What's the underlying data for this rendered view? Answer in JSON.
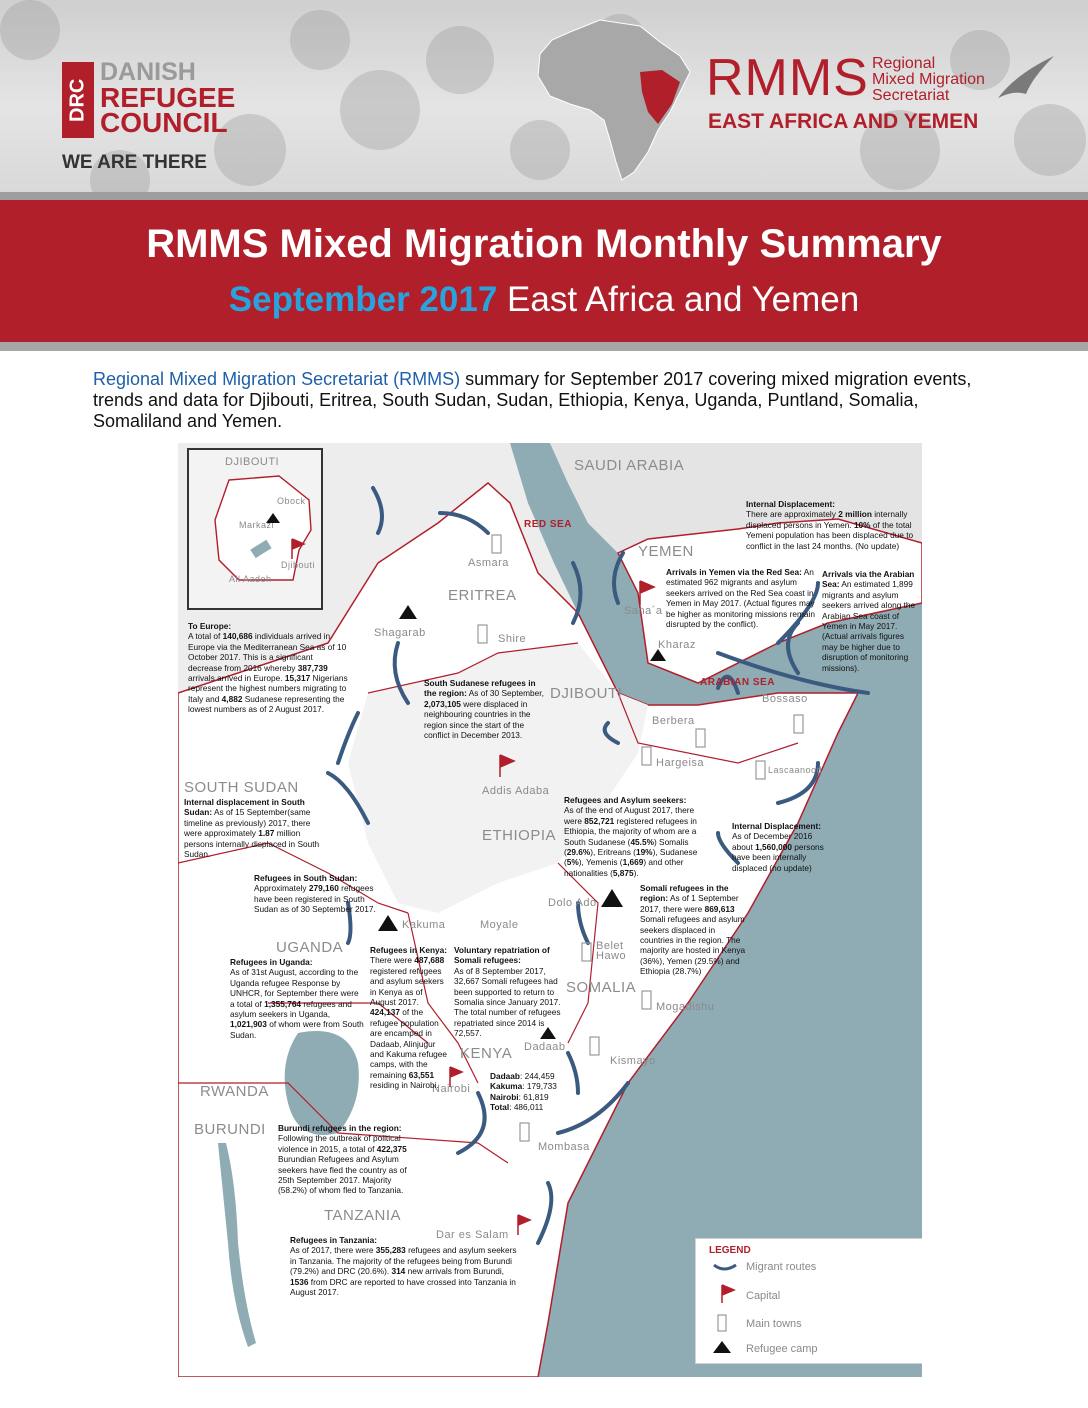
{
  "header": {
    "drc": {
      "vertical": "DRC",
      "line1": "DANISH",
      "line2": "REFUGEE",
      "line3": "COUNCIL",
      "tagline": "WE ARE THERE"
    },
    "rmms": {
      "acronym": "RMMS",
      "line1": "Regional",
      "line2": "Mixed Migration",
      "line3": "Secretariat",
      "region": "EAST AFRICA AND YEMEN"
    }
  },
  "banner": {
    "title": "RMMS Mixed Migration Monthly Summary",
    "subtitle_highlight": "September 2017",
    "subtitle_rest": " East Africa and Yemen"
  },
  "intro": {
    "lead": "Regional Mixed Migration Secretariat (RMMS)",
    "rest": " summary for September 2017 covering mixed migration events, trends and data for Djibouti, Eritrea, South Sudan, Sudan, Ethiopia, Kenya, Uganda, Puntland, Somalia, Somaliland and Yemen."
  },
  "colors": {
    "brand_red": "#b11f2a",
    "accent_blue": "#29a3de",
    "sea": "#8fabb3",
    "land": "#ffffff",
    "route_arrow": "#3a5a80"
  },
  "map": {
    "countries": [
      "SAUDI ARABIA",
      "YEMEN",
      "ERITREA",
      "DJIBOUTI",
      "ETHIOPIA",
      "SOUTH SUDAN",
      "UGANDA",
      "KENYA",
      "SOMALIA",
      "RWANDA",
      "BURUNDI",
      "TANZANIA"
    ],
    "seas": [
      "RED SEA",
      "ARABIAN SEA"
    ],
    "towns": [
      "Asmara",
      "Shire",
      "Shagarab",
      "Sana´a",
      "Kharaz",
      "Berbera",
      "Bossaso",
      "Hargeisa",
      "Lascaanood",
      "Addis Adaba",
      "Dolo Ado",
      "Kakuma",
      "Moyale",
      "Belet Hawo",
      "Mogadishu",
      "Dadaab",
      "Nairobi",
      "Kismayo",
      "Mombasa",
      "Dar es Salam"
    ],
    "inset": {
      "title": "DJIBOUTI",
      "towns": [
        "Obock",
        "Markazi",
        "Djibouti",
        "All Aadeh"
      ]
    }
  },
  "notes": {
    "europe": {
      "title": "To Europe:",
      "p1": "A total of ",
      "v1": "140,686",
      "p2": " individuals arrived in Europe via the Mediterranean Sea as of 10 October 2017. This is a significant decrease from 2016 whereby ",
      "v2": "387,739",
      "p3": " arrivals arrived in Europe. ",
      "v3": "15,317",
      "p4": " Nigerians represent the highest numbers migrating to Italy and ",
      "v4": "4,882",
      "p5": " Sudanese representing the lowest numbers as of 2 August 2017."
    },
    "yemen_idp": {
      "title": "Internal Displacement:",
      "p1": "There are approximately ",
      "v1": "2 million",
      "p2": " internally displaced persons in Yemen. ",
      "v2": "10%",
      "p3": " of the total Yemeni population has been displaced due to conflict in the last 24 months. (No update)"
    },
    "red_sea": {
      "title": "Arrivals in Yemen via the Red Sea:",
      "text": " An estimated 962 migrants and asylum seekers arrived on the Red Sea coast in Yemen in May 2017. (Actual figures may be higher as monitoring missions remain disrupted by the conflict)."
    },
    "arabian_sea": {
      "title": "Arrivals via the Arabian Sea:",
      "text": " An estimated 1,899 migrants and asylum seekers arrived along the Arabian Sea coast of Yemen in May 2017. (Actual arrivals figures may be higher due to disruption of monitoring missions)."
    },
    "ss_refugees_region": {
      "title": "South Sudanese refugees in the region:",
      "p1": " As of 30 September, ",
      "v1": "2,073,105",
      "p2": " were displaced in neighbouring countries in the region since the start of the conflict in December 2013."
    },
    "ss_idp": {
      "title": "Internal displacement in South Sudan:",
      "p1": " As of 15 September(same timeline as previously) 2017, there were approximately ",
      "v1": "1.87",
      "p2": " million persons internally displaced in South Sudan."
    },
    "ethiopia": {
      "title": "Refugees and Asylum seekers:",
      "p1": "As of the end of August 2017, there were ",
      "v1": "852,721",
      "p2": " registered refugees in Ethiopia, the majority of whom are a South Sudanese (",
      "v2": "45.5%",
      "p3": ") Somalis (",
      "v3": "29.6%",
      "p4": "), Eritreans (",
      "v4": "19%",
      "p5": "), Sudanese (",
      "v5": "5%",
      "p6": "), Yemenis (",
      "v6": "1,669",
      "p7": ") and other nationalities (",
      "v7": "5,875",
      "p8": ")."
    },
    "somalia_idp": {
      "title": "Internal Displacement:",
      "p1": "As of December 2016 about ",
      "v1": "1,560,000",
      "p2": " persons have been internally displaced (no update)"
    },
    "ss_refugees_in": {
      "title": "Refugees in South Sudan:",
      "p1": "Approximately ",
      "v1": "279,160",
      "p2": " refugees have been registered in South Sudan as of 30 September 2017."
    },
    "somali_refugees": {
      "title": "Somali refugees in the region:",
      "p1": " As of 1 September 2017, there were ",
      "v1": "869,613",
      "p2": " Somali refugees and asylum seekers displaced in countries in the region. The majority are hosted in Kenya (36%), Yemen (29.5%) and Ethiopia (28.7%)"
    },
    "uganda": {
      "title": "Refugees in Uganda:",
      "p1": "As of 31st August, according to the Uganda refugee Response by UNHCR, for September there were a total of ",
      "v1": "1,355,764",
      "p2": " refugees and asylum seekers in Uganda, ",
      "v2": "1,021,903",
      "p3": " of whom were from South Sudan."
    },
    "kenya": {
      "title": "Refugees in Kenya:",
      "p1": "There were ",
      "v1": "487,688",
      "p2": " registered refugees and asylum seekers in Kenya as of August 2017. ",
      "v2": "424,137",
      "p3": " of the refugee population are encamped in Dadaab, Alinjugur and Kakuma refugee camps, with the remaining ",
      "v3": "63,551",
      "p4": " residing in Nairobi."
    },
    "repatriation": {
      "title": "Voluntary repatriation of Somali refugees:",
      "text": "As of 8 September 2017, 32,667 Somali refugees had been supported to return to Somalia since January 2017. The total number of refugees repatriated since 2014 is 72,557."
    },
    "camps": {
      "l1": "Dadaab",
      "v1": ": 244,459",
      "l2": "Kakuma",
      "v2": ": 179,733",
      "l3": "Nairobi",
      "v3": ": 61,819",
      "l4": "Total",
      "v4": ": 486,011"
    },
    "burundi": {
      "title": "Burundi refugees in the region:",
      "p1": " Following the outbreak of political violence in 2015, a total of ",
      "v1": "422,375",
      "p2": " Burundian Refugees and Asylum seekers have fled the country as of 25th September 2017. Majority (58.2%) of whom fled to Tanzania."
    },
    "tanzania": {
      "title": "Refugees in Tanzania:",
      "p1": "As of 2017, there were ",
      "v1": "355,283",
      "p2": " refugees and asylum seekers in Tanzania. The majority of the refugees being from Burundi (79.2%) and DRC (20.6%). ",
      "v2": "314",
      "p3": " new arrivals from Burundi, ",
      "v3": "1536",
      "p4": " from DRC are reported to have crossed into Tanzania in August 2017."
    }
  },
  "legend": {
    "title": "LEGEND",
    "routes": "Migrant routes",
    "capital": "Capital",
    "towns": "Main towns",
    "camp": "Refugee camp"
  }
}
